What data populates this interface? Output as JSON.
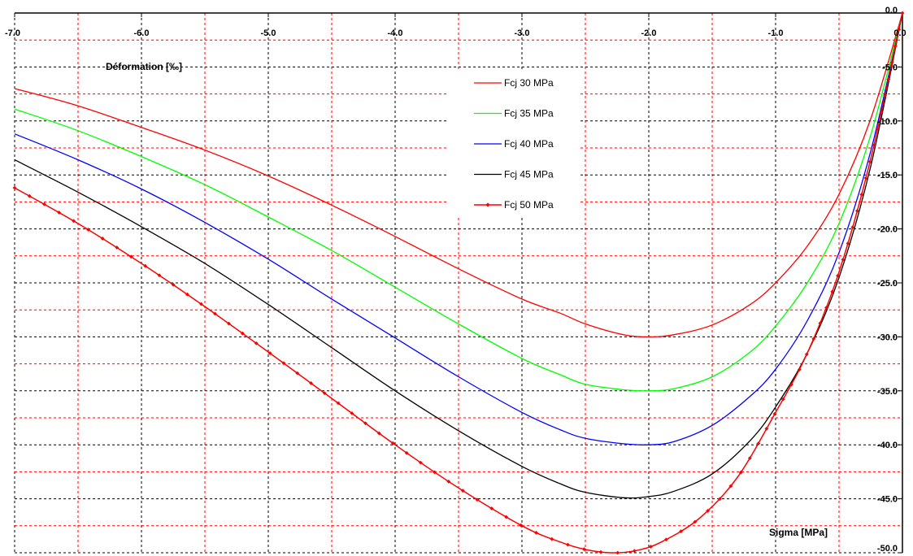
{
  "chart_data": {
    "type": "line",
    "title": "",
    "xlabel": "Déformation [‰]",
    "ylabel": "Sigma [MPa]",
    "xlim": [
      -7.0,
      0.0
    ],
    "ylim": [
      -50.0,
      0.0
    ],
    "grid": true,
    "legend_position": "top-center",
    "x_ticks": [
      -7.0,
      -6.0,
      -5.0,
      -4.0,
      -3.0,
      -2.0,
      -1.0,
      0.0
    ],
    "x_tick_labels": [
      "-7.0",
      "-6.0",
      "-5.0",
      "-4.0",
      "-3.0",
      "-2.0",
      "-1.0",
      "0.0"
    ],
    "y_ticks": [
      0.0,
      -5.0,
      -10.0,
      -15.0,
      -20.0,
      -25.0,
      -30.0,
      -35.0,
      -40.0,
      -45.0,
      -50.0
    ],
    "y_tick_labels": [
      "0.0",
      "-5.0",
      "-10.0",
      "-15.0",
      "-20.0",
      "-25.0",
      "-30.0",
      "-35.0",
      "-40.0",
      "-45.0",
      "-50.0"
    ],
    "series": [
      {
        "name": "Fcj 30 MPa",
        "color": "#ff0000",
        "markers": false,
        "points": [
          [
            -7.0,
            -7.0
          ],
          [
            -6.5,
            -8.6
          ],
          [
            -6.0,
            -10.6
          ],
          [
            -5.5,
            -12.7
          ],
          [
            -5.0,
            -15.1
          ],
          [
            -4.5,
            -17.8
          ],
          [
            -4.0,
            -20.7
          ],
          [
            -3.5,
            -23.7
          ],
          [
            -3.0,
            -26.5
          ],
          [
            -2.7,
            -27.8
          ],
          [
            -2.5,
            -28.8
          ],
          [
            -2.2,
            -29.8
          ],
          [
            -2.0,
            -30.0
          ],
          [
            -1.8,
            -29.8
          ],
          [
            -1.5,
            -28.9
          ],
          [
            -1.2,
            -27.0
          ],
          [
            -1.0,
            -25.0
          ],
          [
            -0.75,
            -21.6
          ],
          [
            -0.5,
            -16.8
          ],
          [
            -0.25,
            -9.8
          ],
          [
            0.0,
            0.0
          ]
        ]
      },
      {
        "name": "Fcj 35 MPa",
        "color": "#00ff00",
        "markers": false,
        "points": [
          [
            -7.0,
            -8.9
          ],
          [
            -6.5,
            -10.9
          ],
          [
            -6.0,
            -13.3
          ],
          [
            -5.5,
            -15.9
          ],
          [
            -5.0,
            -18.9
          ],
          [
            -4.5,
            -22.0
          ],
          [
            -4.0,
            -25.4
          ],
          [
            -3.5,
            -28.8
          ],
          [
            -3.0,
            -32.0
          ],
          [
            -2.7,
            -33.5
          ],
          [
            -2.5,
            -34.4
          ],
          [
            -2.2,
            -34.9
          ],
          [
            -2.0,
            -35.0
          ],
          [
            -1.8,
            -34.8
          ],
          [
            -1.5,
            -33.7
          ],
          [
            -1.2,
            -31.4
          ],
          [
            -1.0,
            -29.0
          ],
          [
            -0.75,
            -25.0
          ],
          [
            -0.5,
            -19.5
          ],
          [
            -0.25,
            -11.3
          ],
          [
            0.0,
            0.0
          ]
        ]
      },
      {
        "name": "Fcj 40 MPa",
        "color": "#0000ff",
        "markers": false,
        "points": [
          [
            -7.0,
            -11.2
          ],
          [
            -6.5,
            -13.6
          ],
          [
            -6.0,
            -16.3
          ],
          [
            -5.5,
            -19.4
          ],
          [
            -5.0,
            -22.8
          ],
          [
            -4.5,
            -26.5
          ],
          [
            -4.0,
            -30.1
          ],
          [
            -3.5,
            -33.7
          ],
          [
            -3.0,
            -37.0
          ],
          [
            -2.7,
            -38.6
          ],
          [
            -2.5,
            -39.4
          ],
          [
            -2.2,
            -39.9
          ],
          [
            -2.0,
            -40.0
          ],
          [
            -1.8,
            -39.7
          ],
          [
            -1.5,
            -38.2
          ],
          [
            -1.2,
            -35.5
          ],
          [
            -1.0,
            -33.0
          ],
          [
            -0.75,
            -28.5
          ],
          [
            -0.5,
            -22.2
          ],
          [
            -0.25,
            -12.8
          ],
          [
            0.0,
            0.0
          ]
        ]
      },
      {
        "name": "Fcj 45 MPa",
        "color": "#000000",
        "markers": false,
        "points": [
          [
            -7.0,
            -13.6
          ],
          [
            -6.5,
            -16.6
          ],
          [
            -6.0,
            -19.8
          ],
          [
            -5.5,
            -23.2
          ],
          [
            -5.0,
            -27.0
          ],
          [
            -4.5,
            -31.0
          ],
          [
            -4.0,
            -35.0
          ],
          [
            -3.5,
            -38.7
          ],
          [
            -3.0,
            -42.0
          ],
          [
            -2.7,
            -43.6
          ],
          [
            -2.5,
            -44.4
          ],
          [
            -2.2,
            -44.9
          ],
          [
            -2.0,
            -44.8
          ],
          [
            -1.8,
            -44.3
          ],
          [
            -1.5,
            -42.7
          ],
          [
            -1.2,
            -39.6
          ],
          [
            -1.0,
            -36.5
          ],
          [
            -0.75,
            -31.5
          ],
          [
            -0.5,
            -24.5
          ],
          [
            -0.25,
            -14.2
          ],
          [
            0.0,
            0.0
          ]
        ]
      },
      {
        "name": "Fcj 50 MPa",
        "color": "#ff0000",
        "markers": true,
        "points": [
          [
            -7.0,
            -16.2
          ],
          [
            -6.5,
            -19.5
          ],
          [
            -6.0,
            -23.2
          ],
          [
            -5.5,
            -27.2
          ],
          [
            -5.0,
            -31.4
          ],
          [
            -4.5,
            -35.7
          ],
          [
            -4.0,
            -40.0
          ],
          [
            -3.5,
            -44.0
          ],
          [
            -3.0,
            -47.5
          ],
          [
            -2.7,
            -49.0
          ],
          [
            -2.5,
            -49.7
          ],
          [
            -2.3,
            -50.0
          ],
          [
            -2.1,
            -49.8
          ],
          [
            -1.9,
            -49.0
          ],
          [
            -1.6,
            -46.8
          ],
          [
            -1.3,
            -43.0
          ],
          [
            -1.0,
            -37.0
          ],
          [
            -0.75,
            -31.5
          ],
          [
            -0.5,
            -24.0
          ],
          [
            -0.25,
            -13.5
          ],
          [
            0.0,
            0.0
          ]
        ]
      }
    ]
  }
}
